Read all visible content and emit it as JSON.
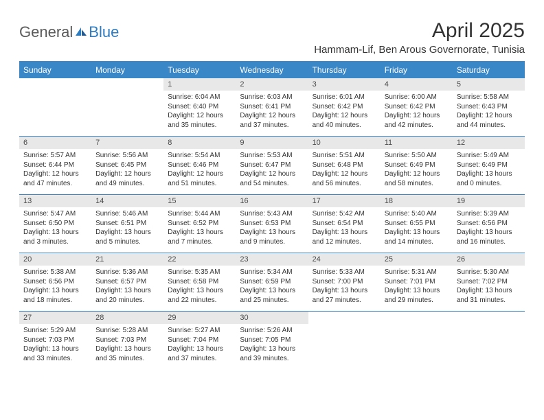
{
  "logo": {
    "text1": "General",
    "text2": "Blue"
  },
  "title": "April 2025",
  "location": "Hammam-Lif, Ben Arous Governorate, Tunisia",
  "weekdays": [
    "Sunday",
    "Monday",
    "Tuesday",
    "Wednesday",
    "Thursday",
    "Friday",
    "Saturday"
  ],
  "header_bg": "#3a87c7",
  "header_fg": "#ffffff",
  "daynum_bg": "#e8e8e8",
  "border_color": "#3a87c7",
  "weeks": [
    [
      null,
      null,
      {
        "n": "1",
        "sr": "Sunrise: 6:04 AM",
        "ss": "Sunset: 6:40 PM",
        "dl1": "Daylight: 12 hours",
        "dl2": "and 35 minutes."
      },
      {
        "n": "2",
        "sr": "Sunrise: 6:03 AM",
        "ss": "Sunset: 6:41 PM",
        "dl1": "Daylight: 12 hours",
        "dl2": "and 37 minutes."
      },
      {
        "n": "3",
        "sr": "Sunrise: 6:01 AM",
        "ss": "Sunset: 6:42 PM",
        "dl1": "Daylight: 12 hours",
        "dl2": "and 40 minutes."
      },
      {
        "n": "4",
        "sr": "Sunrise: 6:00 AM",
        "ss": "Sunset: 6:42 PM",
        "dl1": "Daylight: 12 hours",
        "dl2": "and 42 minutes."
      },
      {
        "n": "5",
        "sr": "Sunrise: 5:58 AM",
        "ss": "Sunset: 6:43 PM",
        "dl1": "Daylight: 12 hours",
        "dl2": "and 44 minutes."
      }
    ],
    [
      {
        "n": "6",
        "sr": "Sunrise: 5:57 AM",
        "ss": "Sunset: 6:44 PM",
        "dl1": "Daylight: 12 hours",
        "dl2": "and 47 minutes."
      },
      {
        "n": "7",
        "sr": "Sunrise: 5:56 AM",
        "ss": "Sunset: 6:45 PM",
        "dl1": "Daylight: 12 hours",
        "dl2": "and 49 minutes."
      },
      {
        "n": "8",
        "sr": "Sunrise: 5:54 AM",
        "ss": "Sunset: 6:46 PM",
        "dl1": "Daylight: 12 hours",
        "dl2": "and 51 minutes."
      },
      {
        "n": "9",
        "sr": "Sunrise: 5:53 AM",
        "ss": "Sunset: 6:47 PM",
        "dl1": "Daylight: 12 hours",
        "dl2": "and 54 minutes."
      },
      {
        "n": "10",
        "sr": "Sunrise: 5:51 AM",
        "ss": "Sunset: 6:48 PM",
        "dl1": "Daylight: 12 hours",
        "dl2": "and 56 minutes."
      },
      {
        "n": "11",
        "sr": "Sunrise: 5:50 AM",
        "ss": "Sunset: 6:49 PM",
        "dl1": "Daylight: 12 hours",
        "dl2": "and 58 minutes."
      },
      {
        "n": "12",
        "sr": "Sunrise: 5:49 AM",
        "ss": "Sunset: 6:49 PM",
        "dl1": "Daylight: 13 hours",
        "dl2": "and 0 minutes."
      }
    ],
    [
      {
        "n": "13",
        "sr": "Sunrise: 5:47 AM",
        "ss": "Sunset: 6:50 PM",
        "dl1": "Daylight: 13 hours",
        "dl2": "and 3 minutes."
      },
      {
        "n": "14",
        "sr": "Sunrise: 5:46 AM",
        "ss": "Sunset: 6:51 PM",
        "dl1": "Daylight: 13 hours",
        "dl2": "and 5 minutes."
      },
      {
        "n": "15",
        "sr": "Sunrise: 5:44 AM",
        "ss": "Sunset: 6:52 PM",
        "dl1": "Daylight: 13 hours",
        "dl2": "and 7 minutes."
      },
      {
        "n": "16",
        "sr": "Sunrise: 5:43 AM",
        "ss": "Sunset: 6:53 PM",
        "dl1": "Daylight: 13 hours",
        "dl2": "and 9 minutes."
      },
      {
        "n": "17",
        "sr": "Sunrise: 5:42 AM",
        "ss": "Sunset: 6:54 PM",
        "dl1": "Daylight: 13 hours",
        "dl2": "and 12 minutes."
      },
      {
        "n": "18",
        "sr": "Sunrise: 5:40 AM",
        "ss": "Sunset: 6:55 PM",
        "dl1": "Daylight: 13 hours",
        "dl2": "and 14 minutes."
      },
      {
        "n": "19",
        "sr": "Sunrise: 5:39 AM",
        "ss": "Sunset: 6:56 PM",
        "dl1": "Daylight: 13 hours",
        "dl2": "and 16 minutes."
      }
    ],
    [
      {
        "n": "20",
        "sr": "Sunrise: 5:38 AM",
        "ss": "Sunset: 6:56 PM",
        "dl1": "Daylight: 13 hours",
        "dl2": "and 18 minutes."
      },
      {
        "n": "21",
        "sr": "Sunrise: 5:36 AM",
        "ss": "Sunset: 6:57 PM",
        "dl1": "Daylight: 13 hours",
        "dl2": "and 20 minutes."
      },
      {
        "n": "22",
        "sr": "Sunrise: 5:35 AM",
        "ss": "Sunset: 6:58 PM",
        "dl1": "Daylight: 13 hours",
        "dl2": "and 22 minutes."
      },
      {
        "n": "23",
        "sr": "Sunrise: 5:34 AM",
        "ss": "Sunset: 6:59 PM",
        "dl1": "Daylight: 13 hours",
        "dl2": "and 25 minutes."
      },
      {
        "n": "24",
        "sr": "Sunrise: 5:33 AM",
        "ss": "Sunset: 7:00 PM",
        "dl1": "Daylight: 13 hours",
        "dl2": "and 27 minutes."
      },
      {
        "n": "25",
        "sr": "Sunrise: 5:31 AM",
        "ss": "Sunset: 7:01 PM",
        "dl1": "Daylight: 13 hours",
        "dl2": "and 29 minutes."
      },
      {
        "n": "26",
        "sr": "Sunrise: 5:30 AM",
        "ss": "Sunset: 7:02 PM",
        "dl1": "Daylight: 13 hours",
        "dl2": "and 31 minutes."
      }
    ],
    [
      {
        "n": "27",
        "sr": "Sunrise: 5:29 AM",
        "ss": "Sunset: 7:03 PM",
        "dl1": "Daylight: 13 hours",
        "dl2": "and 33 minutes."
      },
      {
        "n": "28",
        "sr": "Sunrise: 5:28 AM",
        "ss": "Sunset: 7:03 PM",
        "dl1": "Daylight: 13 hours",
        "dl2": "and 35 minutes."
      },
      {
        "n": "29",
        "sr": "Sunrise: 5:27 AM",
        "ss": "Sunset: 7:04 PM",
        "dl1": "Daylight: 13 hours",
        "dl2": "and 37 minutes."
      },
      {
        "n": "30",
        "sr": "Sunrise: 5:26 AM",
        "ss": "Sunset: 7:05 PM",
        "dl1": "Daylight: 13 hours",
        "dl2": "and 39 minutes."
      },
      null,
      null,
      null
    ]
  ]
}
